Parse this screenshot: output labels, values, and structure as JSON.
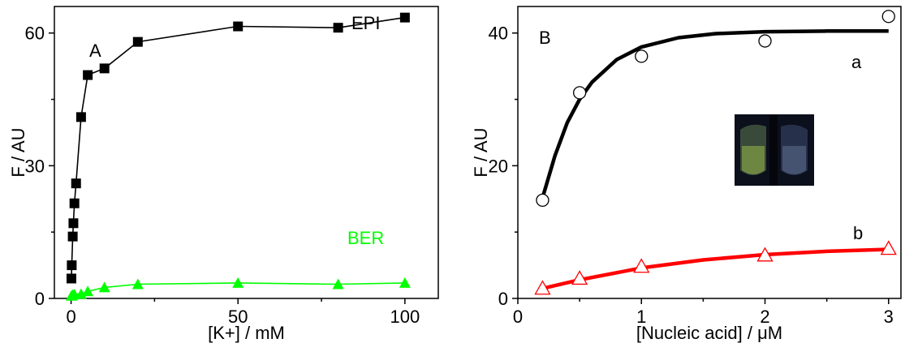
{
  "chart_data": [
    {
      "type": "scatter",
      "panel_label": "A",
      "xlabel": "[K+] / mM",
      "ylabel": "F / AU",
      "xlim": [
        -5,
        110
      ],
      "ylim": [
        0,
        66
      ],
      "xticks": [
        "0",
        "50",
        "100"
      ],
      "xtick_values": [
        0,
        50,
        100
      ],
      "yticks": [
        "0",
        "30",
        "60"
      ],
      "ytick_values": [
        0,
        30,
        60
      ],
      "series": [
        {
          "name": "EPI",
          "marker": "square",
          "color": "#000000",
          "line": true,
          "x": [
            0.1,
            0.2,
            0.5,
            0.7,
            1,
            1.5,
            3,
            5,
            10,
            20,
            50,
            80,
            100
          ],
          "y": [
            4.5,
            7.5,
            14,
            17,
            21.5,
            26,
            41,
            50.5,
            52,
            58,
            61.5,
            61.2,
            63.5
          ]
        },
        {
          "name": "BER",
          "marker": "triangle",
          "color": "#00ff00",
          "line": true,
          "x": [
            0.1,
            0.5,
            1,
            3,
            5,
            10,
            20,
            50,
            80,
            100
          ],
          "y": [
            0.6,
            0.8,
            0.9,
            1.0,
            1.6,
            2.5,
            3.2,
            3.5,
            3.2,
            3.5
          ]
        }
      ]
    },
    {
      "type": "scatter",
      "panel_label": "B",
      "xlabel": "[Nucleic acid] / μM",
      "ylabel": "F / AU",
      "xlim": [
        0,
        3.1
      ],
      "ylim": [
        0,
        44
      ],
      "xticks": [
        "0",
        "1",
        "2",
        "3"
      ],
      "xtick_values": [
        0,
        1,
        2,
        3
      ],
      "yticks": [
        "0",
        "20",
        "40"
      ],
      "ytick_values": [
        0,
        20,
        40
      ],
      "series": [
        {
          "name": "a",
          "marker": "circle-open",
          "color": "#000000",
          "fit_color": "#000000",
          "x": [
            0.2,
            0.5,
            1,
            2,
            3
          ],
          "y": [
            14.8,
            31,
            36.5,
            38.8,
            42.5
          ],
          "fit": {
            "x": [
              0.2,
              0.3,
              0.4,
              0.5,
              0.6,
              0.8,
              1.0,
              1.3,
              1.6,
              2.0,
              2.5,
              3.0
            ],
            "y": [
              15.2,
              21.5,
              26.5,
              30.0,
              32.6,
              36.0,
              37.9,
              39.3,
              39.9,
              40.2,
              40.3,
              40.3
            ]
          }
        },
        {
          "name": "b",
          "marker": "triangle-open",
          "color": "#ff0000",
          "fit_color": "#ff0000",
          "x": [
            0.2,
            0.5,
            1,
            2,
            3
          ],
          "y": [
            1.5,
            3.0,
            4.8,
            6.5,
            7.5
          ],
          "fit": {
            "x": [
              0.2,
              0.5,
              1.0,
              1.5,
              2.0,
              2.5,
              3.0
            ],
            "y": [
              1.5,
              2.8,
              4.6,
              5.8,
              6.6,
              7.1,
              7.4
            ]
          }
        }
      ]
    }
  ]
}
